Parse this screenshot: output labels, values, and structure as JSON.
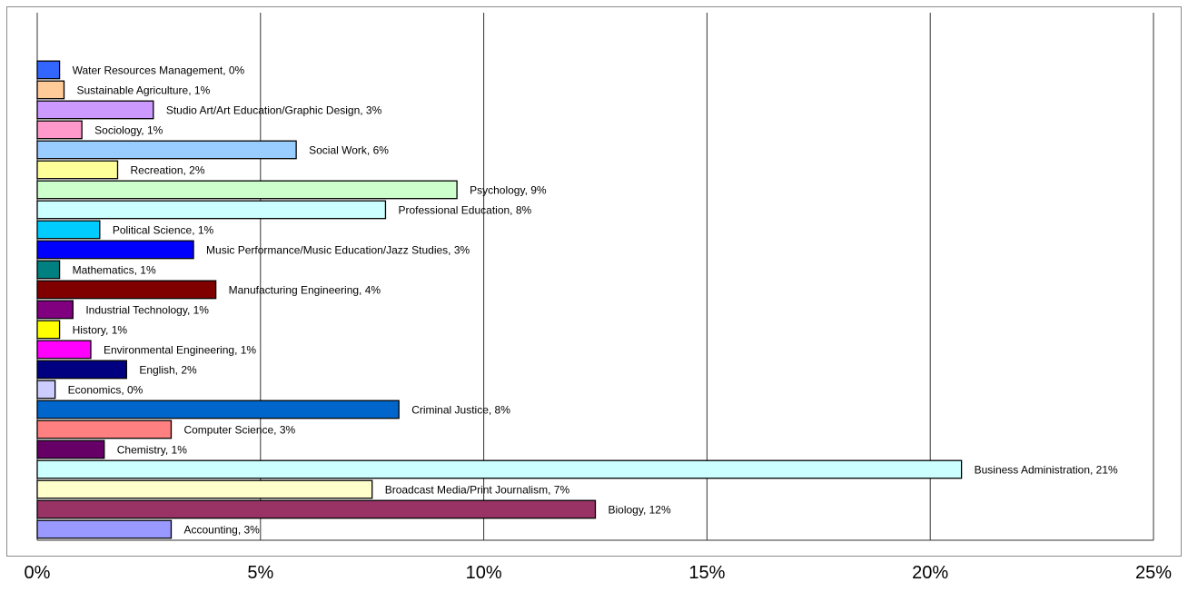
{
  "chart_data": {
    "type": "bar",
    "orientation": "horizontal",
    "title": "",
    "xlabel": "",
    "ylabel": "",
    "xlim": [
      0,
      25
    ],
    "x_ticks": [
      "0%",
      "5%",
      "10%",
      "15%",
      "20%",
      "25%"
    ],
    "grid": "vertical",
    "legend": "none",
    "bars": [
      {
        "category": "Water Resources Management",
        "value": 0.5,
        "label": "Water Resources Management, 0%",
        "color": "#3366ff"
      },
      {
        "category": "Sustainable Agriculture",
        "value": 0.6,
        "label": "Sustainable Agriculture, 1%",
        "color": "#ffcc99"
      },
      {
        "category": "Studio Art/Art Education/Graphic Design",
        "value": 2.6,
        "label": "Studio Art/Art Education/Graphic Design, 3%",
        "color": "#cc99ff"
      },
      {
        "category": "Sociology",
        "value": 1.0,
        "label": "Sociology, 1%",
        "color": "#ff99cc"
      },
      {
        "category": "Social Work",
        "value": 5.8,
        "label": "Social Work, 6%",
        "color": "#99ccff"
      },
      {
        "category": "Recreation",
        "value": 1.8,
        "label": "Recreation, 2%",
        "color": "#ffff99"
      },
      {
        "category": "Psychology",
        "value": 9.4,
        "label": "Psychology, 9%",
        "color": "#ccffcc"
      },
      {
        "category": "Professional Education",
        "value": 7.8,
        "label": "Professional Education, 8%",
        "color": "#ccffff"
      },
      {
        "category": "Political Science",
        "value": 1.4,
        "label": "Political Science, 1%",
        "color": "#00ccff"
      },
      {
        "category": "Music Performance/Music Education/Jazz Studies",
        "value": 3.5,
        "label": "Music Performance/Music Education/Jazz Studies, 3%",
        "color": "#0000ff"
      },
      {
        "category": "Mathematics",
        "value": 0.5,
        "label": "Mathematics, 1%",
        "color": "#008080"
      },
      {
        "category": "Manufacturing Engineering",
        "value": 4.0,
        "label": "Manufacturing Engineering, 4%",
        "color": "#800000"
      },
      {
        "category": "Industrial Technology",
        "value": 0.8,
        "label": "Industrial Technology, 1%",
        "color": "#800080"
      },
      {
        "category": "History",
        "value": 0.5,
        "label": "History, 1%",
        "color": "#ffff00"
      },
      {
        "category": "Environmental Engineering",
        "value": 1.2,
        "label": "Environmental Engineering, 1%",
        "color": "#ff00ff"
      },
      {
        "category": "English",
        "value": 2.0,
        "label": "English, 2%",
        "color": "#000080"
      },
      {
        "category": "Economics",
        "value": 0.4,
        "label": "Economics, 0%",
        "color": "#ccccff"
      },
      {
        "category": "Criminal Justice",
        "value": 8.1,
        "label": "Criminal Justice, 8%",
        "color": "#0066cc"
      },
      {
        "category": "Computer Science",
        "value": 3.0,
        "label": "Computer Science, 3%",
        "color": "#ff8080"
      },
      {
        "category": "Chemistry",
        "value": 1.5,
        "label": "Chemistry, 1%",
        "color": "#660066"
      },
      {
        "category": "Business Administration",
        "value": 20.7,
        "label": "Business Administration, 21%",
        "color": "#ccffff"
      },
      {
        "category": "Broadcast Media/Print Journalism",
        "value": 7.5,
        "label": "Broadcast Media/Print Journalism, 7%",
        "color": "#ffffcc"
      },
      {
        "category": "Biology",
        "value": 12.5,
        "label": "Biology, 12%",
        "color": "#993366"
      },
      {
        "category": "Accounting",
        "value": 3.0,
        "label": "Accounting, 3%",
        "color": "#9999ff"
      }
    ]
  }
}
